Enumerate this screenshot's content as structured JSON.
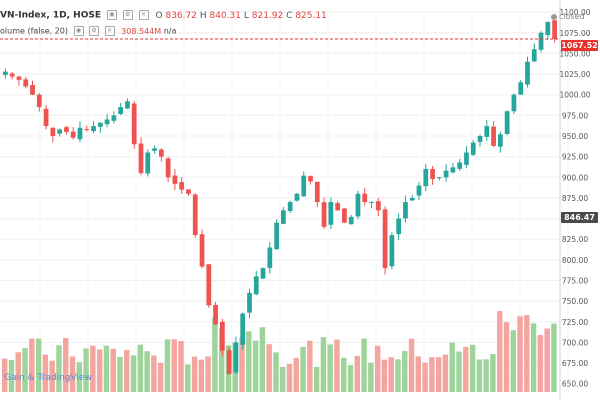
{
  "header": {
    "symbol": "VN-Index, 1D, HOSE",
    "ohlc": {
      "o_label": "O",
      "o": "836.72",
      "h_label": "H",
      "h": "840.31",
      "l_label": "L",
      "l": "821.92",
      "c_label": "C",
      "c": "825.11"
    },
    "volume_label": "olume (false, 20)",
    "volume_value": "308.544M",
    "volume_ma": "n/a"
  },
  "status": "closed",
  "price_labels": {
    "last": "1067.52",
    "crosshair": "846.47"
  },
  "logo_text": "Gain & TradingView",
  "colors": {
    "up": "#26a69a",
    "down": "#ef5350",
    "vol_up": "#9ed39a",
    "vol_down": "#f4a59f",
    "last_line": "#e8332f"
  },
  "chart_data": {
    "type": "candlestick",
    "y_axis": {
      "ticks": [
        1100,
        1075,
        1050,
        1025,
        1000,
        975,
        950,
        925,
        900,
        875,
        850,
        825,
        800,
        775,
        750,
        725,
        700,
        675,
        650
      ],
      "range": [
        640,
        1105
      ]
    },
    "close_series": [
      1028,
      1022,
      1018,
      1010,
      1000,
      985,
      962,
      950,
      958,
      955,
      948,
      960,
      958,
      962,
      966,
      970,
      975,
      985,
      992,
      940,
      905,
      930,
      935,
      925,
      900,
      892,
      885,
      880,
      830,
      792,
      745,
      722,
      690,
      662,
      700,
      735,
      760,
      780,
      790,
      815,
      845,
      860,
      870,
      880,
      902,
      895,
      870,
      840,
      870,
      860,
      845,
      852,
      880,
      870,
      870,
      860,
      790,
      830,
      850,
      870,
      875,
      890,
      910,
      898,
      900,
      908,
      912,
      918,
      930,
      942,
      950,
      962,
      938,
      952,
      980,
      1000,
      1015,
      1040,
      1055,
      1075,
      1088,
      1067.52
    ],
    "volume_bars": 82
  }
}
